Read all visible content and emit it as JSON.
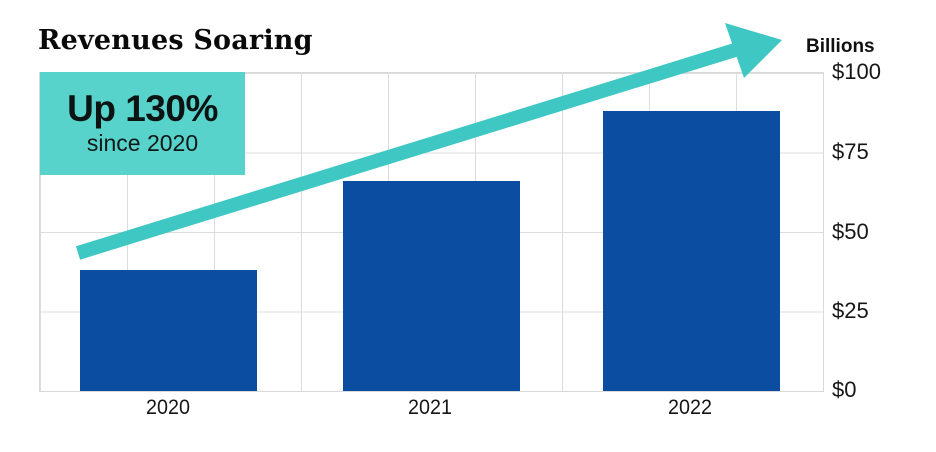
{
  "title": "Revenues Soaring",
  "callout": {
    "headline": "Up 130%",
    "subline": "since 2020"
  },
  "axis": {
    "unit_label": "Billions",
    "y_ticks": [
      "$100",
      "$75",
      "$50",
      "$25",
      "$0"
    ],
    "x_ticks": [
      "2020",
      "2021",
      "2022"
    ]
  },
  "colors": {
    "bar": "#0b4da1",
    "callout_bg": "#58d3cb",
    "arrow": "#3fc8c3",
    "grid": "#dcdcdc",
    "text": "#111111"
  },
  "chart_data": {
    "type": "bar",
    "categories": [
      "2020",
      "2021",
      "2022"
    ],
    "values": [
      38,
      66,
      88
    ],
    "title": "Revenues Soaring",
    "xlabel": "",
    "ylabel": "Billions",
    "ylim": [
      0,
      100
    ],
    "yticks": [
      0,
      25,
      50,
      75,
      100
    ],
    "ytick_labels": [
      "$0",
      "$25",
      "$50",
      "$75",
      "$100"
    ],
    "legend": false,
    "grid": true,
    "annotations": [
      "Up 130% since 2020"
    ],
    "y_axis_side": "right"
  }
}
